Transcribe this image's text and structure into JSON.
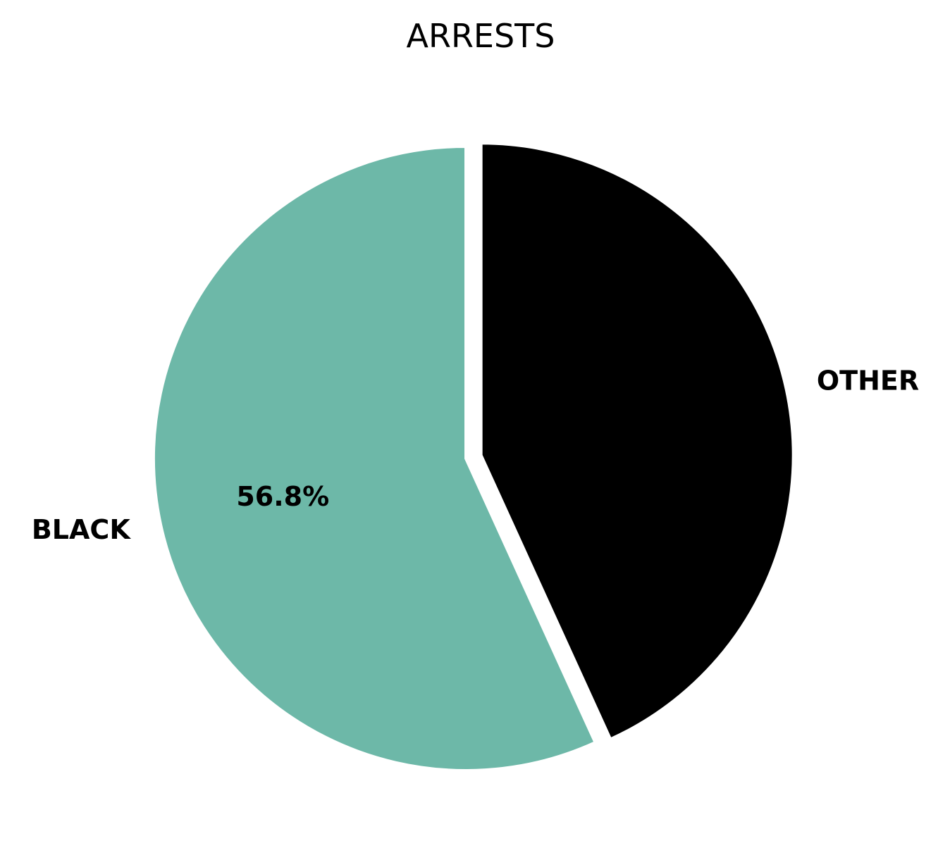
{
  "chart_data": {
    "type": "pie",
    "title": "ARRESTS",
    "slices": [
      {
        "label": "BLACK",
        "value": 56.8,
        "pct_label": "56.8%",
        "color": "#6db8a8",
        "explode": 0
      },
      {
        "label": "OTHER",
        "value": 43.2,
        "pct_label": "",
        "color": "#000000",
        "explode": 0.05
      }
    ],
    "start_angle_deg": 90,
    "direction": "counterclockwise",
    "edge_color": "#ffffff",
    "legend": "none"
  }
}
